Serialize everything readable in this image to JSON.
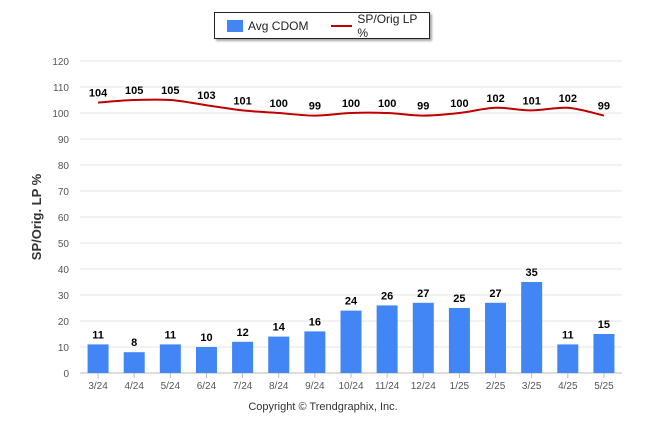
{
  "chart_data": {
    "type": "bar",
    "categories": [
      "3/24",
      "4/24",
      "5/24",
      "6/24",
      "7/24",
      "8/24",
      "9/24",
      "10/24",
      "11/24",
      "12/24",
      "1/25",
      "2/25",
      "3/25",
      "4/25",
      "5/25"
    ],
    "series": [
      {
        "name": "Avg CDOM",
        "type": "bar",
        "color": "#4285f4",
        "values": [
          11,
          8,
          11,
          10,
          12,
          14,
          16,
          24,
          26,
          27,
          25,
          27,
          35,
          11,
          15
        ]
      },
      {
        "name": "SP/Orig LP %",
        "type": "line",
        "color": "#c00000",
        "values": [
          104,
          105,
          105,
          103,
          101,
          100,
          99,
          100,
          100,
          99,
          100,
          102,
          101,
          102,
          99
        ]
      }
    ],
    "ylabel": "SP/Orig. LP %",
    "ylim": [
      0,
      120
    ],
    "yticks": [
      0,
      10,
      20,
      30,
      40,
      50,
      60,
      70,
      80,
      90,
      100,
      110,
      120
    ],
    "grid": true,
    "legend_position": "top-center"
  },
  "footer": {
    "copyright": "Copyright © Trendgraphix, Inc."
  }
}
